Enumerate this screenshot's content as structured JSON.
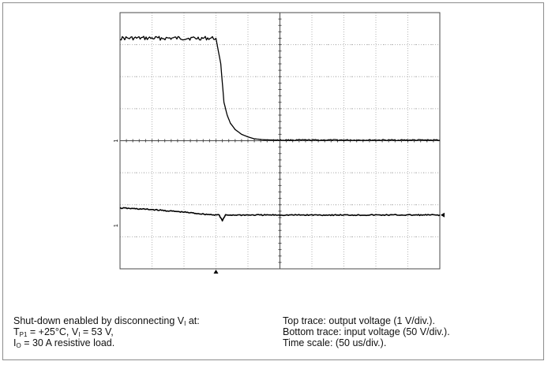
{
  "chart_data": {
    "type": "line",
    "title": "",
    "xlabel": "",
    "ylabel": "",
    "grid": true,
    "time_per_div_us": 50,
    "divisions": {
      "horizontal": 10,
      "vertical": 8
    },
    "x_unit": "div",
    "xlim": [
      0,
      10
    ],
    "ylim_div": [
      -4,
      4
    ],
    "trigger_x_div": 3,
    "channel_markers": {
      "top": "1",
      "bottom": "1"
    },
    "series": [
      {
        "name": "Top trace: output voltage (1 V/div.)",
        "x": [
          0,
          3.0,
          3.15,
          3.25,
          3.35,
          3.45,
          3.6,
          3.8,
          4.0,
          4.2,
          4.5,
          4.9,
          6.0,
          10
        ],
        "y": [
          3.2,
          3.2,
          2.4,
          1.2,
          0.8,
          0.55,
          0.35,
          0.2,
          0.12,
          0.06,
          0.03,
          0.02,
          0.02,
          0.02
        ]
      },
      {
        "name": "Bottom trace: input voltage (50 V/div.)",
        "x": [
          0,
          1.0,
          2.0,
          2.7,
          3.1,
          3.2,
          3.3,
          3.5,
          5.0,
          10
        ],
        "y": [
          -2.1,
          -2.15,
          -2.23,
          -2.3,
          -2.32,
          -2.5,
          -2.32,
          -2.32,
          -2.32,
          -2.32
        ]
      }
    ]
  },
  "caption": {
    "left": {
      "line1_pre": "Shut-down enabled by disconnecting V",
      "line1_sub": "I",
      "line1_post": " at:",
      "line2_t": "T",
      "line2_tsub": "P1",
      "line2_mid": " = +25°C, V",
      "line2_vsub": "I",
      "line2_post": " = 53 V,",
      "line3_i": "I",
      "line3_isub": "O",
      "line3_post": " = 30 A resistive load."
    },
    "right": {
      "line1": "Top trace: output voltage (1 V/div.).",
      "line2": "Bottom trace: input voltage (50 V/div.).",
      "line3": "Time scale: (50 us/div.)."
    }
  }
}
